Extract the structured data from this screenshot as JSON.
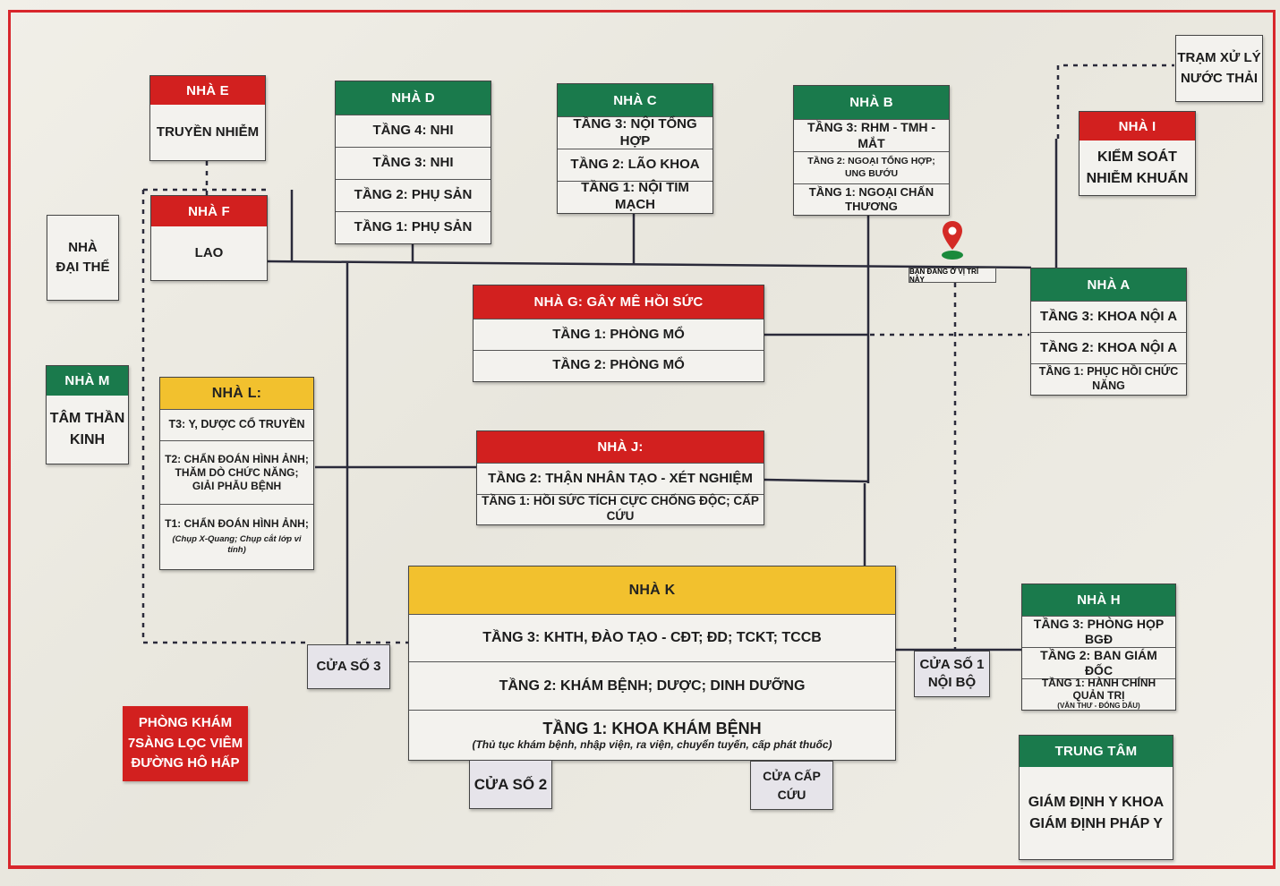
{
  "pin_label": "BẠN ĐANG Ở VỊ TRÍ NÀY",
  "colors": {
    "green": "#1a7a4c",
    "red": "#d2201f",
    "yellow": "#f2c12e",
    "frame": "#d8262c"
  },
  "buildings": {
    "nha_e": {
      "header": "NHÀ E",
      "rows": [
        "TRUYỀN NHIỄM"
      ]
    },
    "nha_f": {
      "header": "NHÀ F",
      "rows": [
        "LAO"
      ]
    },
    "nha_d": {
      "header": "NHÀ D",
      "rows": [
        "TẦNG 4: NHI",
        "TẦNG 3: NHI",
        "TẦNG 2: PHỤ SẢN",
        "TẦNG 1: PHỤ SẢN"
      ]
    },
    "nha_c": {
      "header": "NHÀ C",
      "rows": [
        "TẦNG 3: NỘI TỔNG HỢP",
        "TẦNG 2: LÃO KHOA",
        "TẦNG 1: NỘI TIM MẠCH"
      ]
    },
    "nha_b": {
      "header": "NHÀ B",
      "rows": [
        "TẦNG 3: RHM - TMH - MẮT",
        "TẦNG 2: NGOẠI TỔNG HỢP; UNG BƯỚU",
        "TẦNG 1: NGOẠI CHẤN THƯƠNG"
      ]
    },
    "nha_i": {
      "header": "NHÀ I",
      "rows": [
        "KIỂM SOÁT",
        "NHIỄM KHUẨN"
      ]
    },
    "nha_a": {
      "header": "NHÀ A",
      "rows": [
        "TẦNG 3: KHOA NỘI A",
        "TẦNG 2: KHOA NỘI A",
        "TẦNG 1: PHỤC HỒI CHỨC NĂNG"
      ]
    },
    "nha_g": {
      "header": "NHÀ G: GÂY MÊ HỒI SỨC",
      "rows": [
        "TẦNG 1: PHÒNG MỔ",
        "TẦNG 2: PHÒNG MỔ"
      ]
    },
    "nha_m": {
      "header": "NHÀ M",
      "rows": [
        "TÂM THẦN",
        "KINH"
      ]
    },
    "nha_l": {
      "header": "NHÀ L:",
      "rows": [
        "T3: Y, DƯỢC CỔ TRUYỀN",
        "T2: CHẨN ĐOÁN HÌNH ẢNH;",
        "THĂM DÒ CHỨC NĂNG;",
        "GIẢI PHẪU BỆNH",
        "T1: CHẨN ĐOÁN HÌNH ẢNH;",
        "(Chụp X-Quang; Chụp cắt lớp vi tính)"
      ]
    },
    "nha_j": {
      "header": "NHÀ J:",
      "rows": [
        "TẦNG 2: THẬN NHÂN TẠO - XÉT NGHIỆM",
        "TẦNG 1: HỒI SỨC TÍCH CỰC CHỐNG ĐỘC; CẤP CỨU"
      ]
    },
    "nha_k": {
      "header": "NHÀ K",
      "rows": [
        "TẦNG 3: KHTH, ĐÀO TẠO - CĐT; ĐD; TCKT; TCCB",
        "TẦNG 2: KHÁM BỆNH; DƯỢC; DINH DƯỠNG",
        "TẦNG 1: KHOA KHÁM BỆNH",
        "(Thủ tục khám bệnh, nhập viện, ra viện, chuyển tuyến, cấp phát thuốc)"
      ]
    },
    "nha_h": {
      "header": "NHÀ H",
      "rows": [
        "TẦNG 3: PHÒNG HỌP BGĐ",
        "TẦNG 2: BAN GIÁM ĐỐC",
        "TẦNG 1: HÀNH CHÍNH QUẢN TRỊ",
        "(VĂN THƯ - ĐÓNG DẤU)"
      ]
    },
    "trung_tam": {
      "header": "TRUNG TÂM",
      "rows": [
        "GIÁM ĐỊNH Y KHOA",
        "GIÁM ĐỊNH PHÁP Y"
      ]
    }
  },
  "labels": {
    "nha_dai_the": [
      "NHÀ",
      "ĐẠI THỂ"
    ],
    "tram_xu_ly": [
      "TRẠM XỬ LÝ",
      "NƯỚC THẢI"
    ],
    "cua_so_3": "CỬA SỐ 3",
    "cua_so_2": "CỬA SỐ 2",
    "cua_cap_cuu": "CỬA CẤP CỨU",
    "cua_so_1": [
      "CỬA SỐ 1",
      "NỘI BỘ"
    ],
    "clinic": [
      "PHÒNG KHÁM",
      "7SÀNG LỌC VIÊM",
      "ĐƯỜNG HÔ HẤP"
    ]
  }
}
